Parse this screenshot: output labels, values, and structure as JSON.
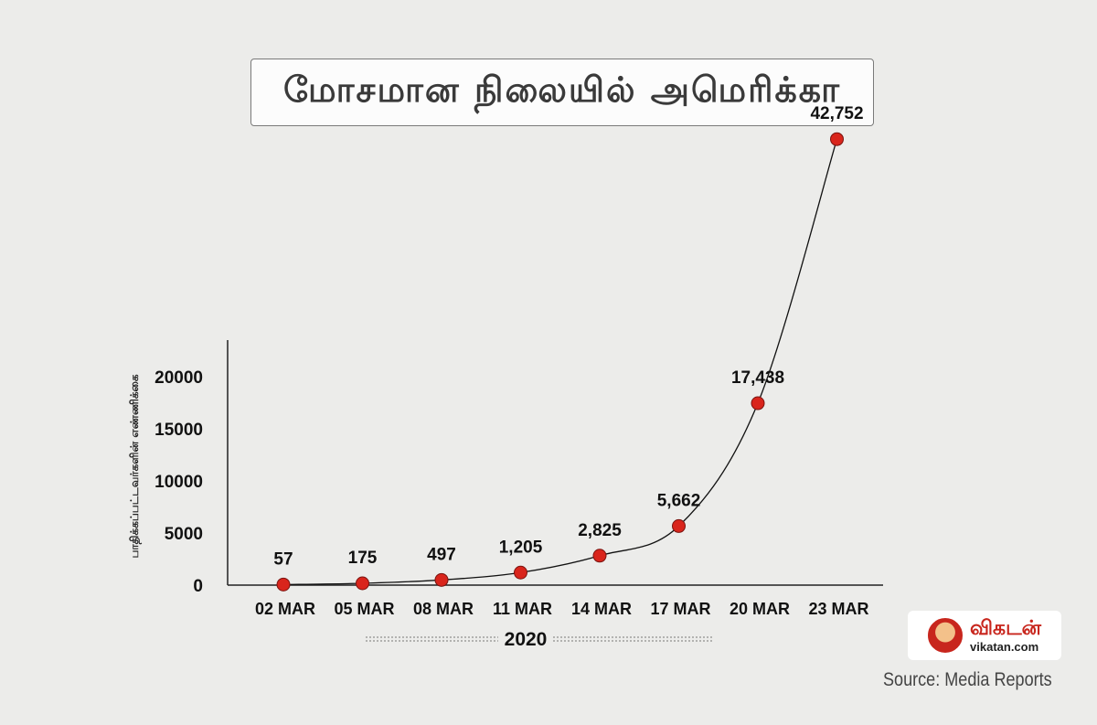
{
  "header": {
    "title": "மோசமான நிலையில் அமெரிக்கா"
  },
  "chart_data": {
    "type": "line",
    "title": "மோசமான நிலையில் அமெரிக்கா",
    "ylabel": "பாதிக்கப்பட்டவர்களின் எண்ணிக்கை",
    "xlabel": "2020",
    "categories": [
      "02 MAR",
      "05 MAR",
      "08 MAR",
      "11 MAR",
      "14 MAR",
      "17 MAR",
      "20 MAR",
      "23 MAR"
    ],
    "values": [
      57,
      175,
      497,
      1205,
      2825,
      5662,
      17438,
      42752
    ],
    "data_labels": [
      "57",
      "175",
      "497",
      "1,205",
      "2,825",
      "5,662",
      "17,438",
      "42,752"
    ],
    "y_ticks": [
      "0",
      "5000",
      "10000",
      "15000",
      "20000"
    ],
    "grid": false,
    "legend": "none",
    "colors": {
      "marker": "#d9251c",
      "line": "#111111",
      "axis": "#222222"
    }
  },
  "branding": {
    "logo_text": "விகடன்",
    "logo_url": "vikatan.com",
    "logo_icon": "vikatan-face-icon"
  },
  "footer": {
    "source": "Source: Media Reports"
  }
}
